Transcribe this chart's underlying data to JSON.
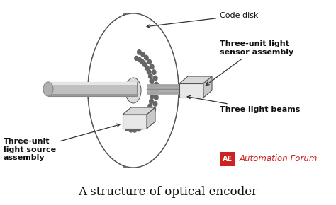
{
  "bg_color": "#ffffff",
  "title": "A structure of optical encoder",
  "title_fontsize": 12,
  "label_code_disk": "Code disk",
  "label_sensor": "Three-unit light\nsensor assembly",
  "label_beams": "Three light beams",
  "label_source": "Three-unit\nlight source\nassembly",
  "brand_text": "Automation Forum",
  "brand_red": "#cc2222",
  "disk_fill": "#f5f5f5",
  "disk_edge": "#555555",
  "slot_color": "#666666",
  "shaft_light": "#cccccc",
  "shaft_dark": "#888888",
  "box_face": "#e8e8e8",
  "box_edge": "#555555",
  "line_color": "#333333",
  "annot_fontsize": 8,
  "annot_bold": true
}
